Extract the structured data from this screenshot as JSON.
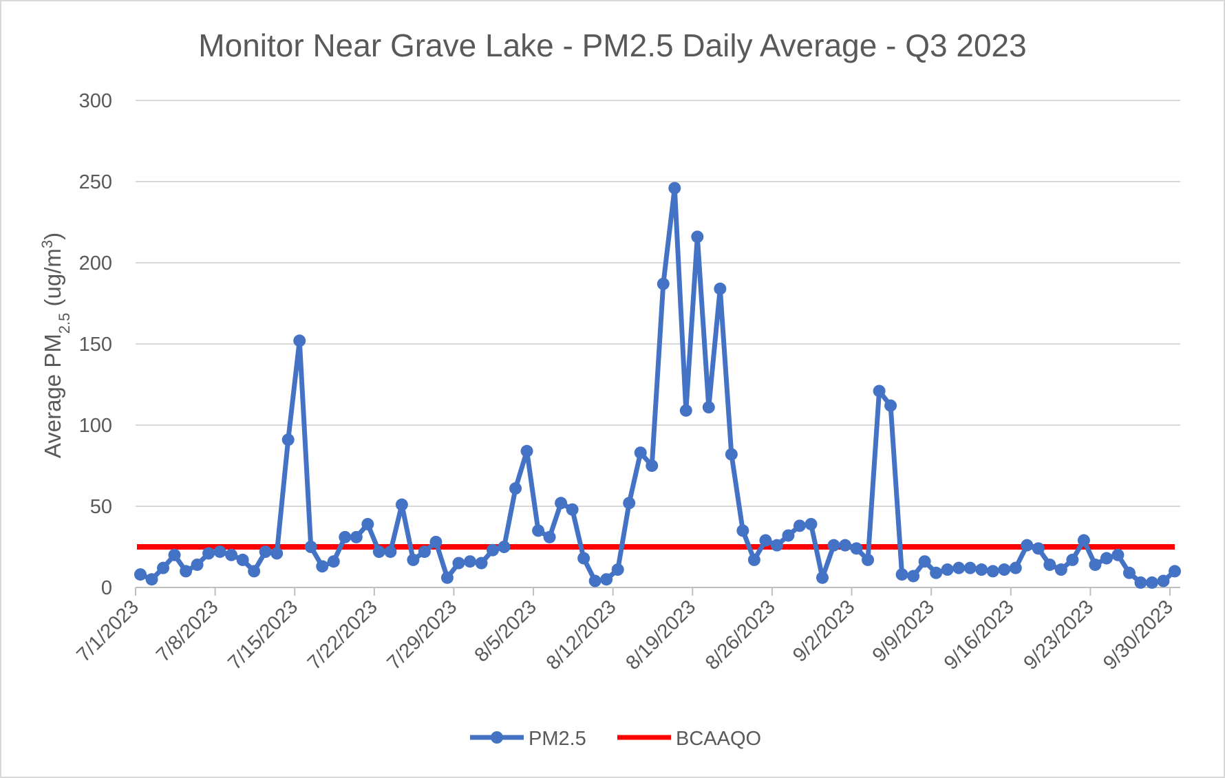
{
  "chart_data": {
    "type": "line",
    "title": "Monitor Near Grave Lake - PM2.5 Daily Average - Q3 2023",
    "ylabel": "Average PM2.5 (ug/m3)",
    "ylabel_parts": {
      "main": "Average PM",
      "sub": "2.5",
      "unit_open": " (ug/m",
      "sup": "3",
      "unit_close": ")"
    },
    "xlabel": "",
    "ylim": [
      0,
      300
    ],
    "yticks": [
      0,
      50,
      100,
      150,
      200,
      250,
      300
    ],
    "x_start": "7/1/2023",
    "x_end": "9/30/2023",
    "xtick_labels": [
      "7/1/2023",
      "7/8/2023",
      "7/15/2023",
      "7/22/2023",
      "7/29/2023",
      "8/5/2023",
      "8/12/2023",
      "8/19/2023",
      "8/26/2023",
      "9/2/2023",
      "9/9/2023",
      "9/16/2023",
      "9/23/2023",
      "9/30/2023"
    ],
    "grid": true,
    "legend_position": "bottom",
    "series": [
      {
        "name": "PM2.5",
        "color": "#4472C4",
        "marker": "circle",
        "x": [
          "7/1/2023",
          "7/2/2023",
          "7/3/2023",
          "7/4/2023",
          "7/5/2023",
          "7/6/2023",
          "7/7/2023",
          "7/8/2023",
          "7/9/2023",
          "7/10/2023",
          "7/11/2023",
          "7/12/2023",
          "7/13/2023",
          "7/14/2023",
          "7/15/2023",
          "7/16/2023",
          "7/17/2023",
          "7/18/2023",
          "7/19/2023",
          "7/20/2023",
          "7/21/2023",
          "7/22/2023",
          "7/23/2023",
          "7/24/2023",
          "7/25/2023",
          "7/26/2023",
          "7/27/2023",
          "7/28/2023",
          "7/29/2023",
          "7/30/2023",
          "7/31/2023",
          "8/1/2023",
          "8/2/2023",
          "8/3/2023",
          "8/4/2023",
          "8/5/2023",
          "8/6/2023",
          "8/7/2023",
          "8/8/2023",
          "8/9/2023",
          "8/10/2023",
          "8/11/2023",
          "8/12/2023",
          "8/13/2023",
          "8/14/2023",
          "8/15/2023",
          "8/16/2023",
          "8/17/2023",
          "8/18/2023",
          "8/19/2023",
          "8/20/2023",
          "8/21/2023",
          "8/22/2023",
          "8/23/2023",
          "8/24/2023",
          "8/25/2023",
          "8/26/2023",
          "8/27/2023",
          "8/28/2023",
          "8/29/2023",
          "8/30/2023",
          "8/31/2023",
          "9/1/2023",
          "9/2/2023",
          "9/3/2023",
          "9/4/2023",
          "9/5/2023",
          "9/6/2023",
          "9/7/2023",
          "9/8/2023",
          "9/9/2023",
          "9/10/2023",
          "9/11/2023",
          "9/12/2023",
          "9/13/2023",
          "9/14/2023",
          "9/15/2023",
          "9/16/2023",
          "9/17/2023",
          "9/18/2023",
          "9/19/2023",
          "9/20/2023",
          "9/21/2023",
          "9/22/2023",
          "9/23/2023",
          "9/24/2023",
          "9/25/2023",
          "9/26/2023",
          "9/27/2023",
          "9/28/2023",
          "9/29/2023",
          "9/30/2023"
        ],
        "values": [
          8,
          5,
          12,
          20,
          10,
          14,
          21,
          22,
          20,
          17,
          10,
          22,
          21,
          91,
          152,
          25,
          13,
          16,
          31,
          31,
          39,
          22,
          22,
          51,
          17,
          22,
          28,
          6,
          15,
          16,
          15,
          23,
          25,
          61,
          84,
          35,
          31,
          52,
          48,
          18,
          4,
          5,
          11,
          52,
          83,
          75,
          187,
          246,
          109,
          216,
          111,
          184,
          82,
          35,
          17,
          29,
          26,
          32,
          38,
          39,
          6,
          26,
          26,
          24,
          17,
          121,
          112,
          8,
          7,
          16,
          9,
          11,
          12,
          12,
          11,
          10,
          11,
          12,
          26,
          24,
          14,
          11,
          17,
          29,
          14,
          18,
          20,
          9,
          3,
          3,
          4,
          10
        ]
      },
      {
        "name": "BCAAQO",
        "color": "#FF0000",
        "marker": "none",
        "x": [
          "7/1/2023",
          "9/30/2023"
        ],
        "values": [
          25,
          25
        ]
      }
    ]
  }
}
